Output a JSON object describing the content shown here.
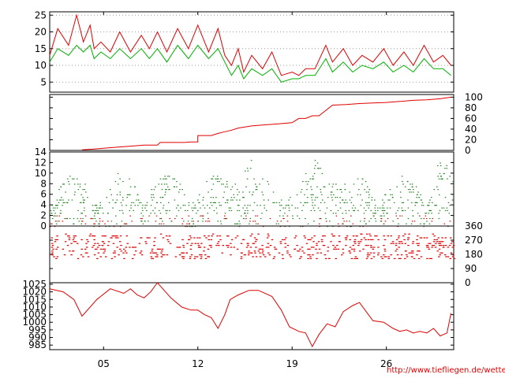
{
  "chart_data": [
    {
      "id": "wind_speed",
      "type": "line",
      "y_ticks": [
        25,
        20,
        15,
        10,
        5
      ],
      "ylim": [
        2,
        26
      ],
      "grid": true,
      "series": [
        {
          "name": "gusts",
          "color": "#e00000",
          "x": [
            0,
            0.6,
            1.4,
            2,
            2.5,
            3,
            3.3,
            3.8,
            4.5,
            5.2,
            6,
            6.8,
            7.4,
            8,
            8.7,
            9.5,
            10.3,
            11,
            11.8,
            12.5,
            13,
            13.5,
            14,
            14.4,
            15,
            15.8,
            16.5,
            17.2,
            18,
            18.5,
            19,
            19.7,
            20.5,
            21,
            21.8,
            22.5,
            23.2,
            24,
            24.8,
            25.5,
            26.3,
            27,
            27.8,
            28.5,
            29.2,
            29.8
          ],
          "y": [
            13,
            21,
            16,
            25,
            17,
            22,
            15,
            17,
            14,
            20,
            14,
            19,
            15,
            20,
            14,
            21,
            15,
            22,
            14,
            21,
            13,
            10,
            15,
            8,
            13,
            9,
            14,
            7,
            8,
            7,
            9,
            9,
            16,
            11,
            15,
            10,
            13,
            11,
            15,
            10,
            14,
            10,
            16,
            11,
            13,
            10
          ]
        },
        {
          "name": "mean",
          "color": "#00b000",
          "x": [
            0,
            0.6,
            1.4,
            2,
            2.5,
            3,
            3.3,
            3.8,
            4.5,
            5.2,
            6,
            6.8,
            7.4,
            8,
            8.7,
            9.5,
            10.3,
            11,
            11.8,
            12.5,
            13,
            13.5,
            14,
            14.4,
            15,
            15.8,
            16.5,
            17.2,
            18,
            18.5,
            19,
            19.7,
            20.5,
            21,
            21.8,
            22.5,
            23.2,
            24,
            24.8,
            25.5,
            26.3,
            27,
            27.8,
            28.5,
            29.2,
            29.8
          ],
          "y": [
            11,
            15,
            13,
            16,
            14,
            16,
            12,
            14,
            12,
            15,
            12,
            15,
            12,
            15,
            11,
            16,
            12,
            16,
            12,
            15,
            11,
            7,
            10,
            6,
            9,
            7,
            9,
            5,
            6,
            6,
            7,
            7,
            12,
            8,
            11,
            8,
            10,
            9,
            11,
            8,
            10,
            8,
            12,
            9,
            9,
            7
          ]
        }
      ]
    },
    {
      "id": "cumulative",
      "type": "line",
      "y_ticks": [
        100,
        80,
        60,
        40,
        20,
        0
      ],
      "ylim": [
        0,
        105
      ],
      "series": [
        {
          "name": "cumulative",
          "color": "#e00000",
          "x": [
            2.4,
            3,
            4,
            5,
            6,
            7,
            8,
            8.2,
            9,
            10,
            10.5,
            11,
            11,
            12,
            12.5,
            13,
            13.5,
            14,
            15,
            16,
            17,
            18,
            18.5,
            19,
            19.5,
            20,
            21,
            22,
            23,
            24,
            25,
            26,
            27,
            28,
            29,
            29.8
          ],
          "y": [
            1,
            2,
            4,
            6,
            8,
            10,
            10,
            15,
            15,
            15,
            16,
            16,
            28,
            28,
            32,
            35,
            38,
            42,
            46,
            48,
            50,
            52,
            60,
            60,
            65,
            65,
            85,
            86,
            88,
            89,
            90,
            92,
            94,
            95,
            97,
            100
          ]
        }
      ]
    },
    {
      "id": "wave_height",
      "type": "scatter",
      "y_ticks": [
        14,
        12,
        10,
        8,
        6,
        4,
        2,
        0
      ],
      "ylim": [
        0,
        14
      ]
    },
    {
      "id": "wind_direction",
      "type": "scatter",
      "y_ticks": [
        360,
        270,
        180,
        90,
        0
      ],
      "ylim": [
        0,
        360
      ]
    },
    {
      "id": "pressure",
      "type": "line",
      "y_ticks": [
        1025,
        1020,
        1015,
        1010,
        1005,
        1000,
        995,
        990,
        985
      ],
      "ylim": [
        982,
        1026
      ],
      "series": [
        {
          "name": "pressure",
          "color": "#e00000",
          "x": [
            0,
            1,
            1.8,
            2.4,
            3.5,
            4.5,
            5.5,
            6,
            6.5,
            7,
            7.5,
            8,
            9,
            9.8,
            10.5,
            11,
            11.5,
            12,
            12.5,
            13,
            13.4,
            14,
            14.8,
            15.5,
            16.5,
            17.2,
            17.8,
            18.5,
            19,
            19.5,
            20,
            20.6,
            21.2,
            21.8,
            22.5,
            23,
            23.5,
            24,
            24.8,
            25.5,
            26,
            26.5,
            27,
            27.5,
            28,
            28.5,
            29,
            29.5,
            29.8
          ],
          "y": [
            1022,
            1020,
            1015,
            1004,
            1015,
            1022,
            1019,
            1022,
            1018,
            1016,
            1020,
            1026,
            1016,
            1010,
            1008,
            1008,
            1005,
            1003,
            996,
            1005,
            1015,
            1018,
            1021,
            1021,
            1017,
            1008,
            997,
            994,
            993,
            984,
            992,
            999,
            997,
            1007,
            1011,
            1013,
            1007,
            1001,
            1000,
            996,
            994,
            995,
            993,
            994,
            993,
            996,
            991,
            993,
            1006
          ]
        }
      ]
    }
  ],
  "x_axis": {
    "ticks": [
      {
        "label": "05",
        "x": 4
      },
      {
        "label": "12",
        "x": 11
      },
      {
        "label": "19",
        "x": 18
      },
      {
        "label": "26",
        "x": 25
      }
    ],
    "range": [
      0,
      30
    ]
  },
  "credit": "http://www.tiefliegen.de/wetter/"
}
